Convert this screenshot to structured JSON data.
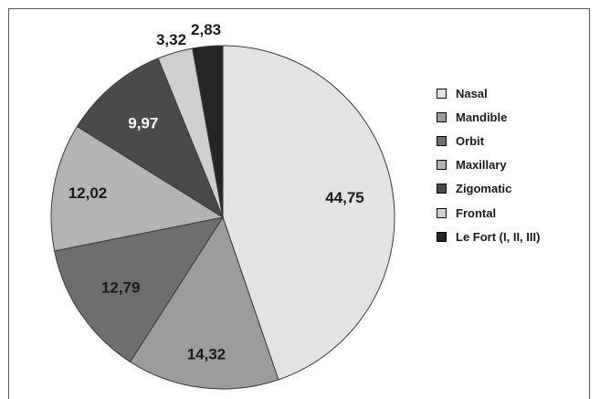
{
  "chart_data": {
    "type": "pie",
    "title": "",
    "slices": [
      {
        "label": "Nasal",
        "value": 44.75,
        "display": "44,75",
        "color": "#e3e3e3",
        "text_color": "#1a1a1a"
      },
      {
        "label": "Mandible",
        "value": 14.32,
        "display": "14,32",
        "color": "#9c9c9c",
        "text_color": "#1a1a1a"
      },
      {
        "label": "Orbit",
        "value": 12.79,
        "display": "12,79",
        "color": "#6e6e6e",
        "text_color": "#1a1a1a"
      },
      {
        "label": "Maxillary",
        "value": 12.02,
        "display": "12,02",
        "color": "#b4b4b4",
        "text_color": "#1a1a1a"
      },
      {
        "label": "Zigomatic",
        "value": 9.97,
        "display": "9,97",
        "color": "#4a4a4a",
        "text_color": "#ffffff"
      },
      {
        "label": "Frontal",
        "value": 3.32,
        "display": "3,32",
        "color": "#cfcfcf",
        "text_color": "#1a1a1a"
      },
      {
        "label": "Le Fort (I, II, III)",
        "value": 2.83,
        "display": "2,83",
        "color": "#262626",
        "text_color": "#1a1a1a"
      }
    ],
    "legend_position": "right"
  }
}
